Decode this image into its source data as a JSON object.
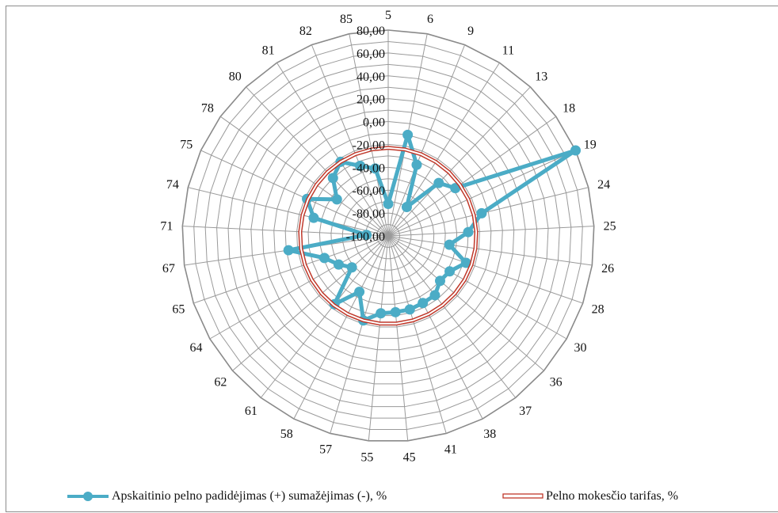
{
  "chart_data": {
    "type": "radar",
    "title": "",
    "categories": [
      "5",
      "6",
      "9",
      "11",
      "13",
      "18",
      "19",
      "24",
      "25",
      "26",
      "28",
      "30",
      "36",
      "37",
      "38",
      "41",
      "45",
      "55",
      "57",
      "58",
      "61",
      "62",
      "64",
      "65",
      "67",
      "71",
      "74",
      "75",
      "78",
      "80",
      "81",
      "82",
      "85"
    ],
    "radial_ticks": [
      "-100,00",
      "-80,00",
      "-60,00",
      "-40,00",
      "-20,00",
      "0,00",
      "20,00",
      "40,00",
      "60,00",
      "80,00"
    ],
    "rlim": [
      -100,
      80
    ],
    "grid": true,
    "legend_position": "bottom",
    "series": [
      {
        "name": "Apskaitinio pelno padidėjimas (+) sumažėjimas (-), %",
        "color": "#4bacc6",
        "values": [
          -72,
          -10,
          -33,
          -70,
          -36,
          -28,
          80,
          -16,
          -30,
          -46,
          -28,
          -38,
          -40,
          -34,
          -34,
          -33,
          -33,
          -32,
          -23,
          -45,
          -24,
          -58,
          -50,
          -41,
          -12,
          -81,
          -33,
          -22,
          -45,
          -30,
          -23,
          -34,
          -40
        ]
      },
      {
        "name": "Pelno mokesčio tarifas, %",
        "color": "#c0392b",
        "values": [
          -23,
          -23,
          -23,
          -23,
          -23,
          -23,
          -23,
          -23,
          -23,
          -23,
          -23,
          -23,
          -23,
          -23,
          -23,
          -23,
          -23,
          -23,
          -23,
          -23,
          -23,
          -23,
          -23,
          -23,
          -23,
          -23,
          -23,
          -23,
          -23,
          -23,
          -23,
          -23,
          -23
        ]
      }
    ]
  }
}
